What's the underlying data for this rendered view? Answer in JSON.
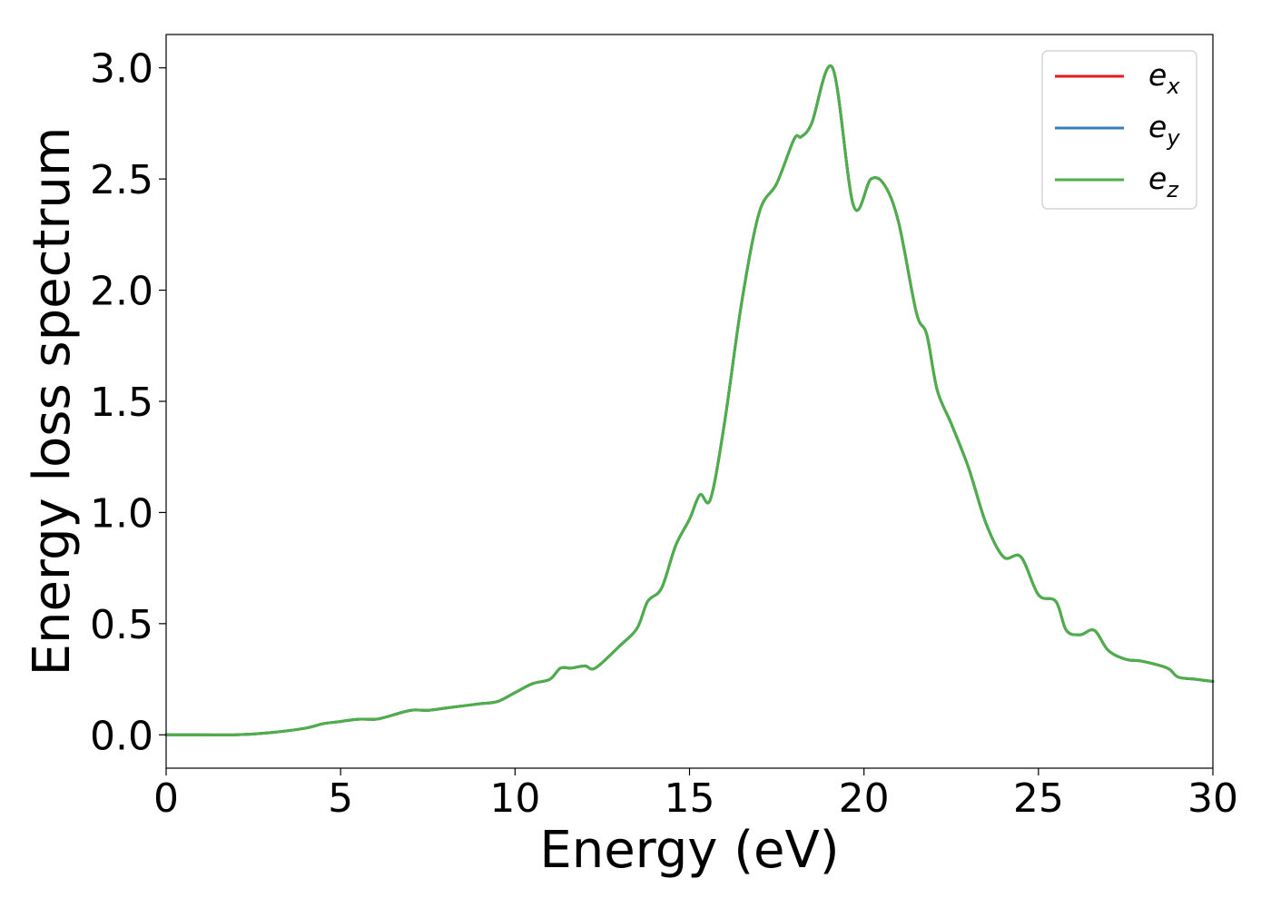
{
  "chart_data": {
    "type": "line",
    "title": "",
    "xlabel": "Energy (eV)",
    "ylabel": "Energy loss spectrum",
    "xlim": [
      0,
      30
    ],
    "ylim": [
      -0.15,
      3.15
    ],
    "xticks": [
      0,
      5,
      10,
      15,
      20,
      25,
      30
    ],
    "xtick_labels": [
      "0",
      "5",
      "10",
      "15",
      "20",
      "25",
      "30"
    ],
    "yticks": [
      0.0,
      0.5,
      1.0,
      1.5,
      2.0,
      2.5,
      3.0
    ],
    "ytick_labels": [
      "0.0",
      "0.5",
      "1.0",
      "1.5",
      "2.0",
      "2.5",
      "3.0"
    ],
    "grid": false,
    "legend_position": "top-right",
    "x": [
      0,
      1,
      2,
      3,
      4,
      4.5,
      5,
      5.5,
      6,
      6.3,
      7,
      7.5,
      8,
      8.5,
      9,
      9.5,
      10,
      10.5,
      11,
      11.3,
      11.6,
      12,
      12.3,
      13,
      13.5,
      13.8,
      14.2,
      14.6,
      15,
      15.3,
      15.6,
      16,
      16.5,
      17,
      17.5,
      18,
      18.2,
      18.5,
      19.1,
      19.7,
      20.2,
      20.6,
      21,
      21.5,
      21.8,
      22.1,
      22.5,
      23,
      23.5,
      24,
      24.5,
      25,
      25.5,
      25.8,
      26.2,
      26.6,
      27,
      27.5,
      28,
      28.7,
      29,
      29.5,
      30
    ],
    "series": [
      {
        "name": "x",
        "values": [
          0.0,
          0.0,
          0.0,
          0.01,
          0.03,
          0.05,
          0.06,
          0.07,
          0.07,
          0.08,
          0.11,
          0.11,
          0.12,
          0.13,
          0.14,
          0.15,
          0.19,
          0.23,
          0.25,
          0.3,
          0.3,
          0.31,
          0.3,
          0.4,
          0.48,
          0.6,
          0.66,
          0.85,
          0.97,
          1.08,
          1.06,
          1.4,
          1.95,
          2.35,
          2.48,
          2.68,
          2.69,
          2.75,
          3.0,
          2.38,
          2.5,
          2.47,
          2.3,
          1.9,
          1.8,
          1.55,
          1.4,
          1.2,
          0.95,
          0.8,
          0.8,
          0.63,
          0.6,
          0.47,
          0.45,
          0.47,
          0.38,
          0.34,
          0.33,
          0.3,
          0.26,
          0.25,
          0.24
        ]
      },
      {
        "name": "y",
        "values": [
          0.0,
          0.0,
          0.0,
          0.01,
          0.03,
          0.05,
          0.06,
          0.07,
          0.07,
          0.08,
          0.11,
          0.11,
          0.12,
          0.13,
          0.14,
          0.15,
          0.19,
          0.23,
          0.25,
          0.3,
          0.3,
          0.31,
          0.3,
          0.4,
          0.48,
          0.6,
          0.66,
          0.85,
          0.97,
          1.08,
          1.06,
          1.4,
          1.95,
          2.35,
          2.48,
          2.68,
          2.69,
          2.75,
          3.0,
          2.38,
          2.5,
          2.47,
          2.3,
          1.9,
          1.8,
          1.55,
          1.4,
          1.2,
          0.95,
          0.8,
          0.8,
          0.63,
          0.6,
          0.47,
          0.45,
          0.47,
          0.38,
          0.34,
          0.33,
          0.3,
          0.26,
          0.25,
          0.24
        ]
      },
      {
        "name": "z",
        "values": [
          0.0,
          0.0,
          0.0,
          0.01,
          0.03,
          0.05,
          0.06,
          0.07,
          0.07,
          0.08,
          0.11,
          0.11,
          0.12,
          0.13,
          0.14,
          0.15,
          0.19,
          0.23,
          0.25,
          0.3,
          0.3,
          0.31,
          0.3,
          0.4,
          0.48,
          0.6,
          0.66,
          0.85,
          0.97,
          1.08,
          1.06,
          1.4,
          1.95,
          2.35,
          2.48,
          2.68,
          2.69,
          2.75,
          3.0,
          2.38,
          2.5,
          2.47,
          2.3,
          1.9,
          1.8,
          1.55,
          1.4,
          1.2,
          0.95,
          0.8,
          0.8,
          0.63,
          0.6,
          0.47,
          0.45,
          0.47,
          0.38,
          0.34,
          0.33,
          0.3,
          0.26,
          0.25,
          0.24
        ]
      }
    ],
    "legend": [
      {
        "base": "e",
        "sub": "x",
        "color": "#e41a1c"
      },
      {
        "base": "e",
        "sub": "y",
        "color": "#377eb8"
      },
      {
        "base": "e",
        "sub": "z",
        "color": "#4daf4a"
      }
    ]
  }
}
